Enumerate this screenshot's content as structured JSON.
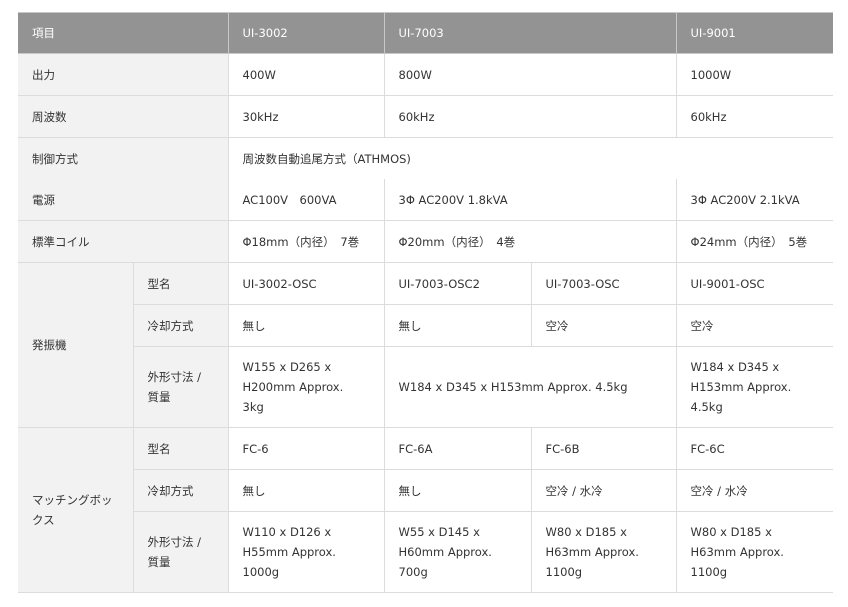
{
  "header": {
    "item": "項目",
    "models": [
      "UI-3002",
      "UI-7003",
      "UI-9001"
    ]
  },
  "rows": {
    "output": {
      "label": "出力",
      "values": [
        "400W",
        "800W",
        "1000W"
      ]
    },
    "frequency": {
      "label": "周波数",
      "values": [
        "30kHz",
        "60kHz",
        "60kHz"
      ]
    },
    "control": {
      "label": "制御方式",
      "value": "周波数自動追尾方式（ATHMOS)"
    },
    "power": {
      "label": "電源",
      "values": [
        "AC100V　600VA",
        "3Φ AC200V 1.8kVA",
        "3Φ AC200V 2.1kVA"
      ]
    },
    "coil": {
      "label": "標準コイル",
      "values": [
        "Φ18mm（内径）　7巻",
        "Φ20mm（内径）　4巻",
        "Φ24mm（内径）　5巻"
      ]
    }
  },
  "oscillator": {
    "label": "発振機",
    "model": {
      "label": "型名",
      "values": [
        "UI-3002-OSC",
        "UI-7003-OSC2",
        "UI-7003-OSC",
        "UI-9001-OSC"
      ]
    },
    "cooling": {
      "label": "冷却方式",
      "values": [
        "無し",
        "無し",
        "空冷",
        "空冷"
      ]
    },
    "dims": {
      "label": "外形寸法 / 質量",
      "values": [
        "W155 x D265 x H200mm Approx. 3kg",
        "W184 x D345 x H153mm Approx. 4.5kg",
        "W184 x D345 x H153mm Approx. 4.5kg"
      ]
    }
  },
  "matching": {
    "label": "マッチングボックス",
    "model": {
      "label": "型名",
      "values": [
        "FC-6",
        "FC-6A",
        "FC-6B",
        "FC-6C"
      ]
    },
    "cooling": {
      "label": "冷却方式",
      "values": [
        "無し",
        "無し",
        "空冷 / 水冷",
        "空冷 / 水冷"
      ]
    },
    "dims": {
      "label": "外形寸法 / 質量",
      "values": [
        "W110 x D126 x H55mm Approx. 1000g",
        "W55 x D145 x H60mm Approx. 700g",
        "W80 x D185 x H63mm Approx. 1100g",
        "W80 x D185 x H63mm Approx. 1100g"
      ]
    }
  },
  "colors": {
    "header_bg": "#939393",
    "label_bg": "#f2f2f2",
    "border": "#dcdcdc"
  }
}
